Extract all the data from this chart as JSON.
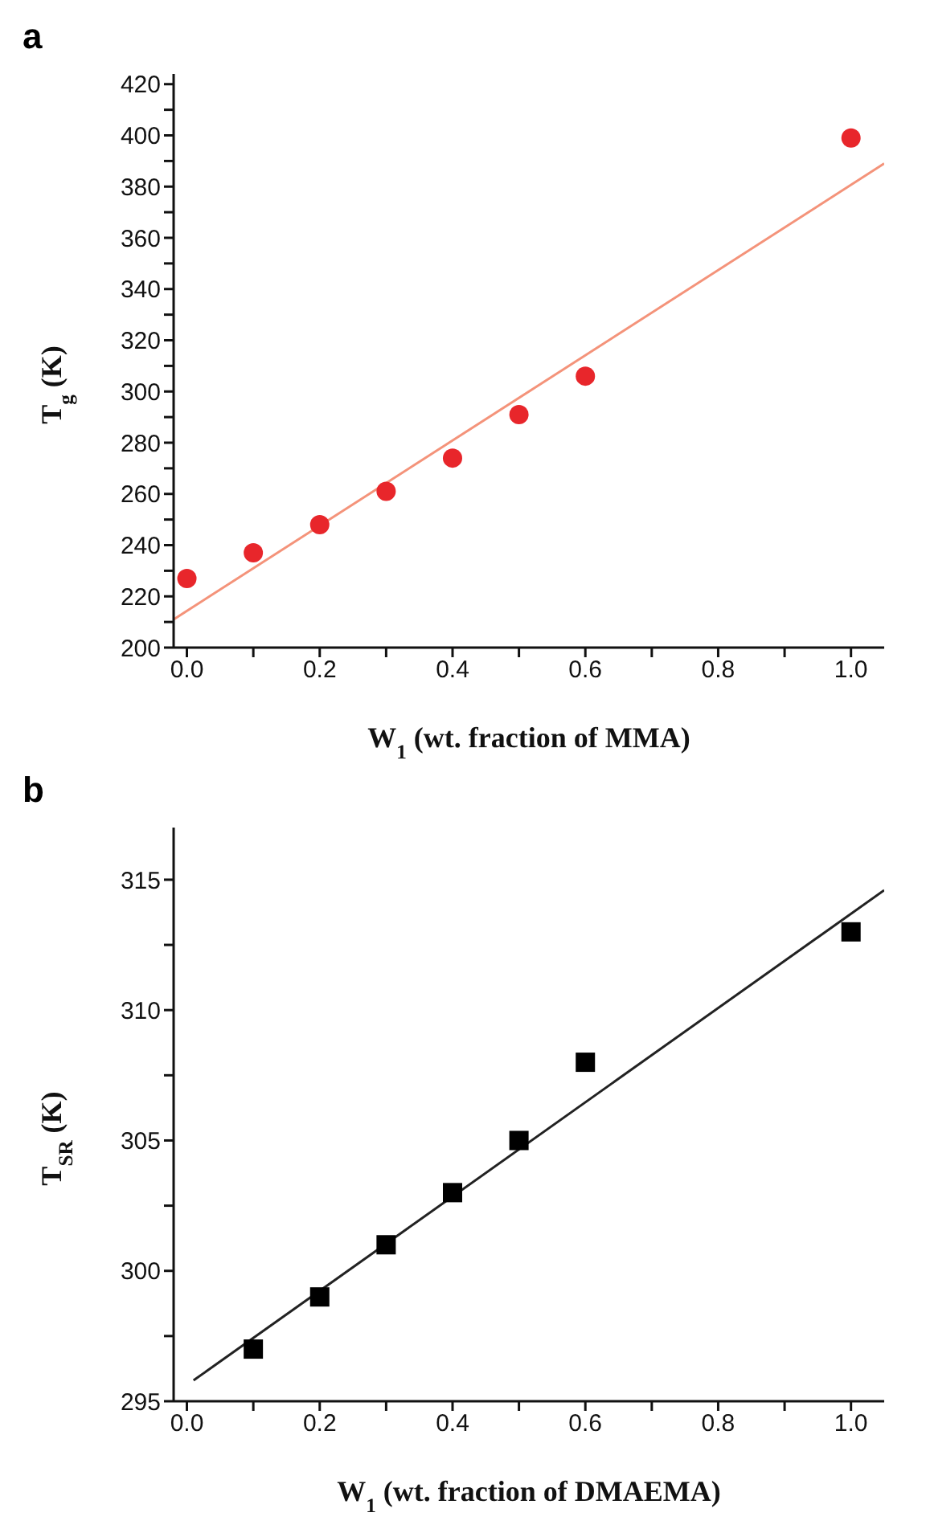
{
  "chart_data": [
    {
      "type": "scatter",
      "title": "a",
      "xlabel": "W$_{1}$ (wt. fraction of MMA)",
      "ylabel": "T$_{g}$ (K)",
      "xlim": [
        -0.02,
        1.05
      ],
      "ylim": [
        200,
        424
      ],
      "xticks": [
        {
          "value": 0,
          "label": "0.0"
        },
        {
          "value": 0.1,
          "label": null
        },
        {
          "value": 0.2,
          "label": "0.2"
        },
        {
          "value": 0.3,
          "label": null
        },
        {
          "value": 0.4,
          "label": "0.4"
        },
        {
          "value": 0.5,
          "label": null
        },
        {
          "value": 0.6,
          "label": "0.6"
        },
        {
          "value": 0.7,
          "label": null
        },
        {
          "value": 0.8,
          "label": "0.8"
        },
        {
          "value": 0.9,
          "label": null
        },
        {
          "value": 1,
          "label": "1.0"
        }
      ],
      "yticks": [
        200,
        {
          "value": 210,
          "label": null
        },
        220,
        {
          "value": 230,
          "label": null
        },
        240,
        {
          "value": 250,
          "label": null
        },
        260,
        {
          "value": 270,
          "label": null
        },
        280,
        {
          "value": 290,
          "label": null
        },
        300,
        {
          "value": 310,
          "label": null
        },
        320,
        {
          "value": 330,
          "label": null
        },
        340,
        {
          "value": 350,
          "label": null
        },
        360,
        {
          "value": 370,
          "label": null
        },
        380,
        {
          "value": 390,
          "label": null
        },
        400,
        {
          "value": 410,
          "label": null
        },
        420
      ],
      "series": [
        {
          "marker": "circle",
          "color": "#e8262b",
          "x": [
            0,
            0.1,
            0.2,
            0.3,
            0.4,
            0.5,
            0.6,
            1.0
          ],
          "values": [
            227,
            237,
            248,
            261,
            274,
            291,
            306,
            399
          ]
        },
        {
          "type": "line",
          "marker": "none",
          "color": "#f4937a",
          "x": [
            -0.02,
            1.05
          ],
          "values": [
            211,
            389
          ]
        }
      ]
    },
    {
      "type": "scatter",
      "title": "b",
      "xlabel": "W$_{1}$ (wt. fraction of DMAEMA)",
      "ylabel": "T$_{SR}$ (K)",
      "xlim": [
        -0.02,
        1.05
      ],
      "ylim": [
        295,
        317
      ],
      "xticks": [
        {
          "value": 0,
          "label": "0.0"
        },
        {
          "value": 0.1,
          "label": null
        },
        {
          "value": 0.2,
          "label": "0.2"
        },
        {
          "value": 0.3,
          "label": null
        },
        {
          "value": 0.4,
          "label": "0.4"
        },
        {
          "value": 0.5,
          "label": null
        },
        {
          "value": 0.6,
          "label": "0.6"
        },
        {
          "value": 0.7,
          "label": null
        },
        {
          "value": 0.8,
          "label": "0.8"
        },
        {
          "value": 0.9,
          "label": null
        },
        {
          "value": 1,
          "label": "1.0"
        }
      ],
      "yticks": [
        295,
        {
          "value": 297.5,
          "label": null
        },
        300,
        {
          "value": 302.5,
          "label": null
        },
        305,
        {
          "value": 307.5,
          "label": null
        },
        310,
        {
          "value": 312.5,
          "label": null
        },
        315
      ],
      "series": [
        {
          "marker": "square",
          "color": "#000000",
          "x": [
            0.1,
            0.2,
            0.3,
            0.4,
            0.5,
            0.6,
            1.0
          ],
          "values": [
            297,
            299,
            301,
            303,
            305,
            308,
            313
          ]
        },
        {
          "type": "line",
          "marker": "none",
          "color": "#222222",
          "x": [
            0.01,
            1.05
          ],
          "values": [
            295.8,
            314.6
          ]
        }
      ]
    }
  ]
}
